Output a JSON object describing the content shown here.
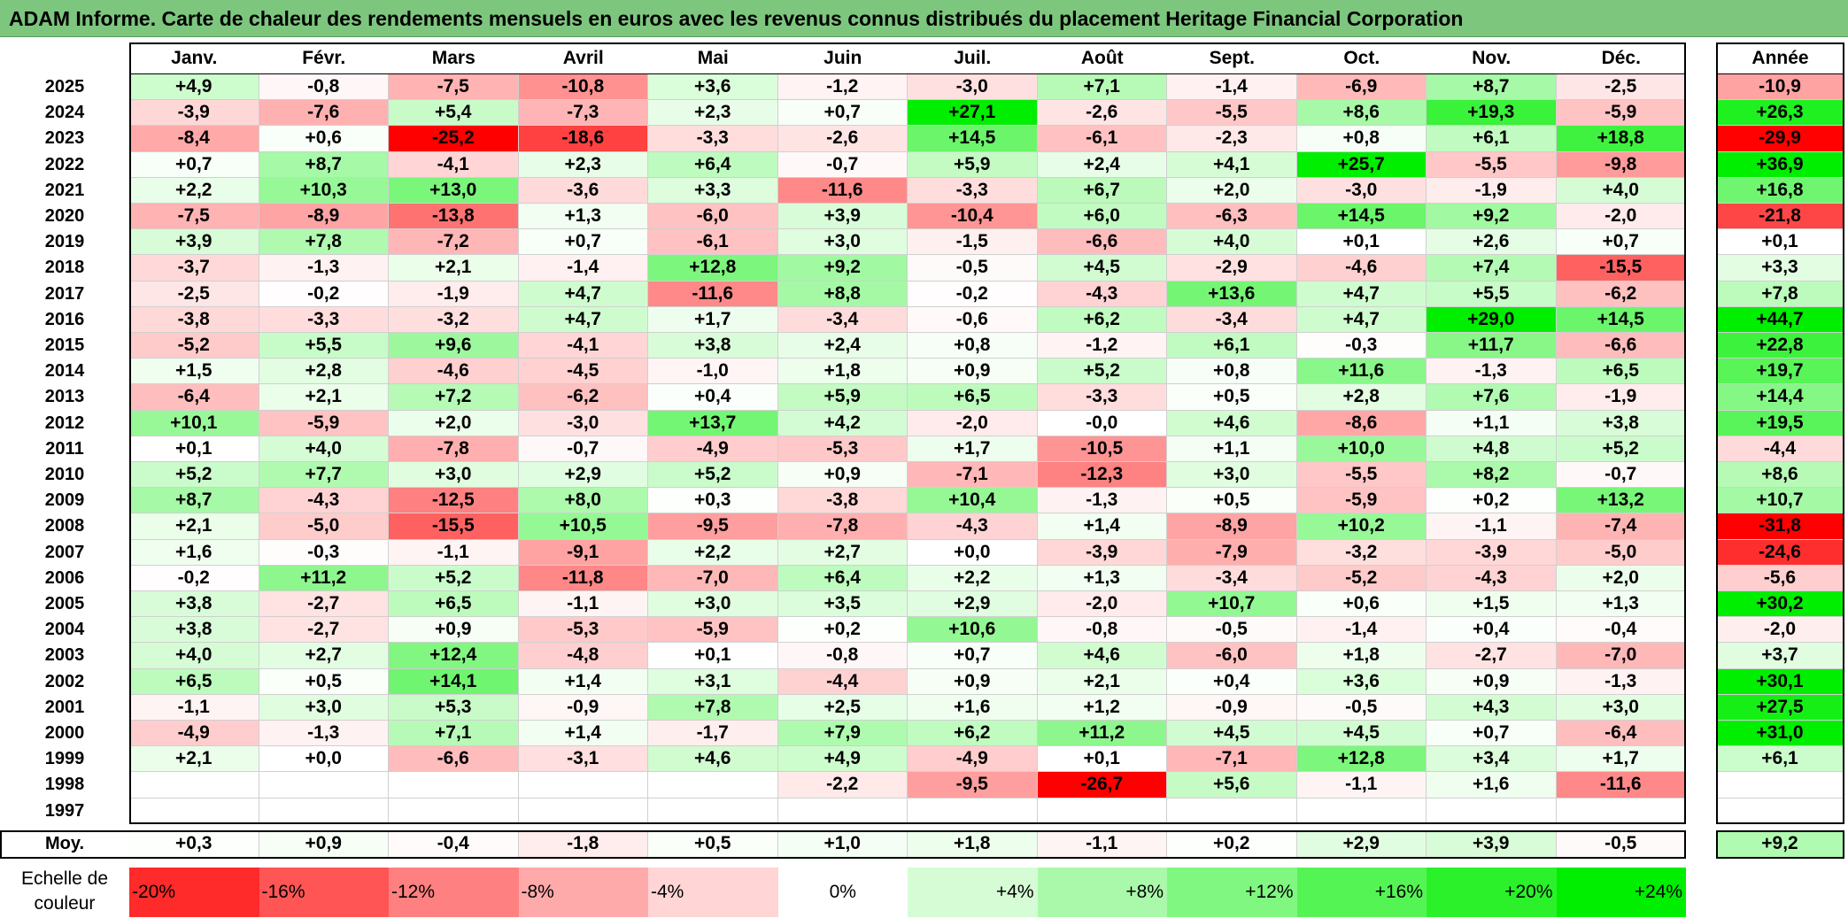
{
  "title": "ADAM Informe. Carte de chaleur des rendements mensuels en euros avec les revenus connus distribués du placement Heritage Financial Corporation",
  "chart_data": {
    "type": "heatmap",
    "title": "ADAM Informe. Carte de chaleur des rendements mensuels en euros avec les revenus connus distribués du placement Heritage Financial Corporation",
    "months": [
      "Janv.",
      "Févr.",
      "Mars",
      "Avril",
      "Mai",
      "Juin",
      "Juil.",
      "Août",
      "Sept.",
      "Oct.",
      "Nov.",
      "Déc."
    ],
    "year_header": "Année",
    "rows": [
      {
        "year": "2025",
        "values": [
          "+4,9",
          "-0,8",
          "-7,5",
          "-10,8",
          "+3,6",
          "-1,2",
          "-3,0",
          "+7,1",
          "-1,4",
          "-6,9",
          "+8,7",
          "-2,5"
        ],
        "annual": "-10,9"
      },
      {
        "year": "2024",
        "values": [
          "-3,9",
          "-7,6",
          "+5,4",
          "-7,3",
          "+2,3",
          "+0,7",
          "+27,1",
          "-2,6",
          "-5,5",
          "+8,6",
          "+19,3",
          "-5,9"
        ],
        "annual": "+26,3"
      },
      {
        "year": "2023",
        "values": [
          "-8,4",
          "+0,6",
          "-25,2",
          "-18,6",
          "-3,3",
          "-2,6",
          "+14,5",
          "-6,1",
          "-2,3",
          "+0,8",
          "+6,1",
          "+18,8"
        ],
        "annual": "-29,9"
      },
      {
        "year": "2022",
        "values": [
          "+0,7",
          "+8,7",
          "-4,1",
          "+2,3",
          "+6,4",
          "-0,7",
          "+5,9",
          "+2,4",
          "+4,1",
          "+25,7",
          "-5,5",
          "-9,8"
        ],
        "annual": "+36,9"
      },
      {
        "year": "2021",
        "values": [
          "+2,2",
          "+10,3",
          "+13,0",
          "-3,6",
          "+3,3",
          "-11,6",
          "-3,3",
          "+6,7",
          "+2,0",
          "-3,0",
          "-1,9",
          "+4,0"
        ],
        "annual": "+16,8"
      },
      {
        "year": "2020",
        "values": [
          "-7,5",
          "-8,9",
          "-13,8",
          "+1,3",
          "-6,0",
          "+3,9",
          "-10,4",
          "+6,0",
          "-6,3",
          "+14,5",
          "+9,2",
          "-2,0"
        ],
        "annual": "-21,8"
      },
      {
        "year": "2019",
        "values": [
          "+3,9",
          "+7,8",
          "-7,2",
          "+0,7",
          "-6,1",
          "+3,0",
          "-1,5",
          "-6,6",
          "+4,0",
          "+0,1",
          "+2,6",
          "+0,7"
        ],
        "annual": "+0,1"
      },
      {
        "year": "2018",
        "values": [
          "-3,7",
          "-1,3",
          "+2,1",
          "-1,4",
          "+12,8",
          "+9,2",
          "-0,5",
          "+4,5",
          "-2,9",
          "-4,6",
          "+7,4",
          "-15,5"
        ],
        "annual": "+3,3"
      },
      {
        "year": "2017",
        "values": [
          "-2,5",
          "-0,2",
          "-1,9",
          "+4,7",
          "-11,6",
          "+8,8",
          "-0,2",
          "-4,3",
          "+13,6",
          "+4,7",
          "+5,5",
          "-6,2"
        ],
        "annual": "+7,8"
      },
      {
        "year": "2016",
        "values": [
          "-3,8",
          "-3,3",
          "-3,2",
          "+4,7",
          "+1,7",
          "-3,4",
          "-0,6",
          "+6,2",
          "-3,4",
          "+4,7",
          "+29,0",
          "+14,5"
        ],
        "annual": "+44,7"
      },
      {
        "year": "2015",
        "values": [
          "-5,2",
          "+5,5",
          "+9,6",
          "-4,1",
          "+3,8",
          "+2,4",
          "+0,8",
          "-1,2",
          "+6,1",
          "-0,3",
          "+11,7",
          "-6,6"
        ],
        "annual": "+22,8"
      },
      {
        "year": "2014",
        "values": [
          "+1,5",
          "+2,8",
          "-4,6",
          "-4,5",
          "-1,0",
          "+1,8",
          "+0,9",
          "+5,2",
          "+0,8",
          "+11,6",
          "-1,3",
          "+6,5"
        ],
        "annual": "+19,7"
      },
      {
        "year": "2013",
        "values": [
          "-6,4",
          "+2,1",
          "+7,2",
          "-6,2",
          "+0,4",
          "+5,9",
          "+6,5",
          "-3,3",
          "+0,5",
          "+2,8",
          "+7,6",
          "-1,9"
        ],
        "annual": "+14,4"
      },
      {
        "year": "2012",
        "values": [
          "+10,1",
          "-5,9",
          "+2,0",
          "-3,0",
          "+13,7",
          "+4,2",
          "-2,0",
          "-0,0",
          "+4,6",
          "-8,6",
          "+1,1",
          "+3,8"
        ],
        "annual": "+19,5"
      },
      {
        "year": "2011",
        "values": [
          "+0,1",
          "+4,0",
          "-7,8",
          "-0,7",
          "-4,9",
          "-5,3",
          "+1,7",
          "-10,5",
          "+1,1",
          "+10,0",
          "+4,8",
          "+5,2"
        ],
        "annual": "-4,4"
      },
      {
        "year": "2010",
        "values": [
          "+5,2",
          "+7,7",
          "+3,0",
          "+2,9",
          "+5,2",
          "+0,9",
          "-7,1",
          "-12,3",
          "+3,0",
          "-5,5",
          "+8,2",
          "-0,7"
        ],
        "annual": "+8,6"
      },
      {
        "year": "2009",
        "values": [
          "+8,7",
          "-4,3",
          "-12,5",
          "+8,0",
          "+0,3",
          "-3,8",
          "+10,4",
          "-1,3",
          "+0,5",
          "-5,9",
          "+0,2",
          "+13,2"
        ],
        "annual": "+10,7"
      },
      {
        "year": "2008",
        "values": [
          "+2,1",
          "-5,0",
          "-15,5",
          "+10,5",
          "-9,5",
          "-7,8",
          "-4,3",
          "+1,4",
          "-8,9",
          "+10,2",
          "-1,1",
          "-7,4"
        ],
        "annual": "-31,8"
      },
      {
        "year": "2007",
        "values": [
          "+1,6",
          "-0,3",
          "-1,1",
          "-9,1",
          "+2,2",
          "+2,7",
          "+0,0",
          "-3,9",
          "-7,9",
          "-3,2",
          "-3,9",
          "-5,0"
        ],
        "annual": "-24,6"
      },
      {
        "year": "2006",
        "values": [
          "-0,2",
          "+11,2",
          "+5,2",
          "-11,8",
          "-7,0",
          "+6,4",
          "+2,2",
          "+1,3",
          "-3,4",
          "-5,2",
          "-4,3",
          "+2,0"
        ],
        "annual": "-5,6"
      },
      {
        "year": "2005",
        "values": [
          "+3,8",
          "-2,7",
          "+6,5",
          "-1,1",
          "+3,0",
          "+3,5",
          "+2,9",
          "-2,0",
          "+10,7",
          "+0,6",
          "+1,5",
          "+1,3"
        ],
        "annual": "+30,2"
      },
      {
        "year": "2004",
        "values": [
          "+3,8",
          "-2,7",
          "+0,9",
          "-5,3",
          "-5,9",
          "+0,2",
          "+10,6",
          "-0,8",
          "-0,5",
          "-1,4",
          "+0,4",
          "-0,4"
        ],
        "annual": "-2,0"
      },
      {
        "year": "2003",
        "values": [
          "+4,0",
          "+2,7",
          "+12,4",
          "-4,8",
          "+0,1",
          "-0,8",
          "+0,7",
          "+4,6",
          "-6,0",
          "+1,8",
          "-2,7",
          "-7,0"
        ],
        "annual": "+3,7"
      },
      {
        "year": "2002",
        "values": [
          "+6,5",
          "+0,5",
          "+14,1",
          "+1,4",
          "+3,1",
          "-4,4",
          "+0,9",
          "+2,1",
          "+0,4",
          "+3,6",
          "+0,9",
          "-1,3"
        ],
        "annual": "+30,1"
      },
      {
        "year": "2001",
        "values": [
          "-1,1",
          "+3,0",
          "+5,3",
          "-0,9",
          "+7,8",
          "+2,5",
          "+1,6",
          "+1,2",
          "-0,9",
          "-0,5",
          "+4,3",
          "+3,0"
        ],
        "annual": "+27,5"
      },
      {
        "year": "2000",
        "values": [
          "-4,9",
          "-1,3",
          "+7,1",
          "+1,4",
          "-1,7",
          "+7,9",
          "+6,2",
          "+11,2",
          "+4,5",
          "+4,5",
          "+0,7",
          "-6,4"
        ],
        "annual": "+31,0"
      },
      {
        "year": "1999",
        "values": [
          "+2,1",
          "+0,0",
          "-6,6",
          "-3,1",
          "+4,6",
          "+4,9",
          "-4,9",
          "+0,1",
          "-7,1",
          "+12,8",
          "+3,4",
          "+1,7"
        ],
        "annual": "+6,1"
      },
      {
        "year": "1998",
        "values": [
          "",
          "",
          "",
          "",
          "",
          "-2,2",
          "-9,5",
          "-26,7",
          "+5,6",
          "-1,1",
          "+1,6",
          "-11,6"
        ],
        "annual": ""
      },
      {
        "year": "1997",
        "values": [
          "",
          "",
          "",
          "",
          "",
          "",
          "",
          "",
          "",
          "",
          "",
          ""
        ],
        "annual": ""
      }
    ],
    "average": {
      "label": "Moy.",
      "values": [
        "+0,3",
        "+0,9",
        "-0,4",
        "-1,8",
        "+0,5",
        "+1,0",
        "+1,8",
        "-1,1",
        "+0,2",
        "+2,9",
        "+3,9",
        "-0,5"
      ],
      "annual": "+9,2"
    },
    "legend": {
      "title": "Echelle de couleur",
      "steps": [
        "-20%",
        "-16%",
        "-12%",
        "-8%",
        "-4%",
        "0%",
        "+4%",
        "+8%",
        "+12%",
        "+16%",
        "+20%",
        "+24%"
      ],
      "step_values": [
        -20,
        -16,
        -12,
        -8,
        -4,
        0,
        4,
        8,
        12,
        16,
        20,
        24
      ]
    },
    "colors": {
      "negative_max": "#ff0000",
      "neutral": "#ffffff",
      "positive_max": "#00ee00",
      "title_bar": "#7dc67e"
    }
  }
}
